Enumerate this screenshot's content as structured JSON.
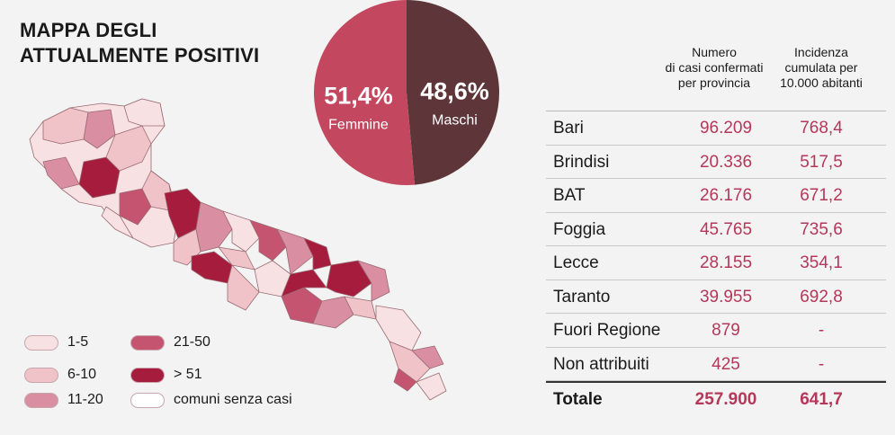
{
  "title": {
    "line1": "MAPPA DEGLI",
    "line2": "ATTUALMENTE POSITIVI"
  },
  "colors": {
    "c1_5": "#f8e1e2",
    "c6_10": "#efc3c8",
    "c11_20": "#d98ea2",
    "c21_50": "#c4546f",
    "c51": "#a51c3d",
    "none": "#ffffff",
    "female": "#c3485f",
    "male": "#5e3538",
    "accent": "#b5375a"
  },
  "legend": [
    {
      "label": "1-5",
      "color_key": "c1_5"
    },
    {
      "label": "6-10",
      "color_key": "c6_10"
    },
    {
      "label": "11-20",
      "color_key": "c11_20"
    },
    {
      "label": "21-50",
      "color_key": "c21_50"
    },
    {
      "label": "> 51",
      "color_key": "c51"
    },
    {
      "label": "comuni senza casi",
      "color_key": "none"
    }
  ],
  "chart_data": {
    "type": "pie",
    "slices": [
      {
        "label": "Femmine",
        "value": 51.4,
        "display": "51,4%"
      },
      {
        "label": "Maschi",
        "value": 48.6,
        "display": "48,6%"
      }
    ]
  },
  "table": {
    "header_cases": [
      "Numero",
      "di casi confermati",
      "per provincia"
    ],
    "header_incidence": [
      "Incidenza",
      "cumulata per",
      "10.000 abitanti"
    ],
    "rows": [
      {
        "name": "Bari",
        "cases": "96.209",
        "incidence": "768,4"
      },
      {
        "name": "Brindisi",
        "cases": "20.336",
        "incidence": "517,5"
      },
      {
        "name": "BAT",
        "cases": "26.176",
        "incidence": "671,2"
      },
      {
        "name": "Foggia",
        "cases": "45.765",
        "incidence": "735,6"
      },
      {
        "name": "Lecce",
        "cases": "28.155",
        "incidence": "354,1"
      },
      {
        "name": "Taranto",
        "cases": "39.955",
        "incidence": "692,8"
      },
      {
        "name": "Fuori Regione",
        "cases": "879",
        "incidence": "-"
      },
      {
        "name": "Non attribuiti",
        "cases": "425",
        "incidence": "-"
      }
    ],
    "total": {
      "name": "Totale",
      "cases": "257.900",
      "incidence": "641,7"
    }
  }
}
